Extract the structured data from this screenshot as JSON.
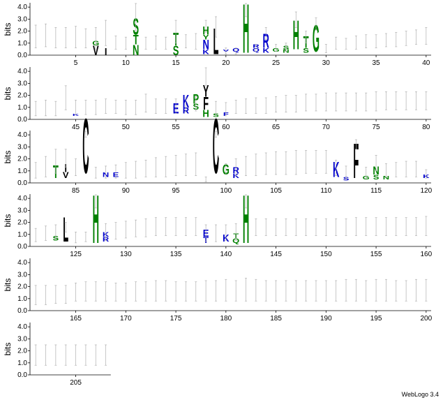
{
  "chart_data": {
    "type": "sequence-logo",
    "ylabel": "bits",
    "ylim": [
      0,
      4.3
    ],
    "yticks": [
      "0.0",
      "1.0",
      "2.0",
      "3.0",
      "4.0"
    ],
    "positions_per_row": 40,
    "total_positions": 208,
    "xtick_every": 5,
    "colors": {
      "hydrophobic": "#000000",
      "polar": "#008000",
      "basic": "#0000cc",
      "acidic": "#cc0000",
      "errorbar": "#b0b0b0"
    },
    "error_bars": [
      [
        1,
        0.6,
        2.5
      ],
      [
        2,
        0.7,
        2.6
      ],
      [
        3,
        0.6,
        2.3
      ],
      [
        4,
        0.6,
        2.3
      ],
      [
        5,
        0.6,
        2.4
      ],
      [
        6,
        0.6,
        2.2
      ],
      [
        7,
        0.5,
        2.3
      ],
      [
        8,
        0.8,
        2.9
      ],
      [
        9,
        0.5,
        1.6
      ],
      [
        10,
        0.5,
        1.5
      ],
      [
        11,
        2.0,
        4.3
      ],
      [
        12,
        0.5,
        1.5
      ],
      [
        13,
        0.5,
        1.6
      ],
      [
        14,
        0.5,
        1.5
      ],
      [
        15,
        1.0,
        2.9
      ],
      [
        16,
        0.6,
        1.7
      ],
      [
        17,
        0.5,
        1.8
      ],
      [
        18,
        1.9,
        2.9
      ],
      [
        19,
        1.5,
        3.2
      ],
      [
        20,
        0.1,
        0.6
      ],
      [
        21,
        0.1,
        0.6
      ],
      [
        22,
        3.2,
        4.3
      ],
      [
        23,
        0.3,
        0.9
      ],
      [
        24,
        1.3,
        2.3
      ],
      [
        25,
        0.3,
        0.9
      ],
      [
        26,
        0.3,
        1.0
      ],
      [
        27,
        2.3,
        3.6
      ],
      [
        28,
        1.0,
        2.0
      ],
      [
        29,
        2.1,
        3.1
      ],
      [
        30,
        0.2,
        0.9
      ],
      [
        31,
        0.5,
        1.5
      ],
      [
        32,
        0.5,
        1.4
      ],
      [
        33,
        0.5,
        1.6
      ],
      [
        34,
        0.6,
        1.7
      ],
      [
        35,
        0.6,
        1.7
      ],
      [
        36,
        0.7,
        1.8
      ],
      [
        37,
        0.7,
        1.9
      ],
      [
        38,
        0.8,
        2.0
      ],
      [
        39,
        0.9,
        2.1
      ],
      [
        40,
        0.9,
        2.3
      ],
      [
        41,
        0.3,
        1.5
      ],
      [
        42,
        0.3,
        1.6
      ],
      [
        43,
        0.3,
        1.5
      ],
      [
        44,
        0.8,
        2.8
      ],
      [
        45,
        0.4,
        1.6
      ],
      [
        46,
        0.4,
        1.6
      ],
      [
        47,
        0.4,
        1.6
      ],
      [
        48,
        0.5,
        1.7
      ],
      [
        49,
        0.5,
        1.6
      ],
      [
        50,
        0.4,
        1.6
      ],
      [
        51,
        0.4,
        1.6
      ],
      [
        52,
        0.6,
        2.1
      ],
      [
        53,
        0.5,
        1.7
      ],
      [
        54,
        0.5,
        1.7
      ],
      [
        55,
        0.5,
        1.7
      ],
      [
        56,
        0.6,
        1.8
      ],
      [
        57,
        0.7,
        1.9
      ],
      [
        58,
        2.8,
        4.3
      ],
      [
        59,
        0.4,
        1.5
      ],
      [
        60,
        0.3,
        1.4
      ],
      [
        61,
        0.5,
        1.6
      ],
      [
        62,
        0.5,
        1.7
      ],
      [
        63,
        0.5,
        1.8
      ],
      [
        64,
        0.5,
        1.8
      ],
      [
        65,
        0.6,
        1.9
      ],
      [
        66,
        0.6,
        2.0
      ],
      [
        67,
        0.6,
        2.0
      ],
      [
        68,
        0.7,
        2.1
      ],
      [
        69,
        0.7,
        2.1
      ],
      [
        70,
        0.7,
        2.2
      ],
      [
        71,
        0.7,
        2.2
      ],
      [
        72,
        0.7,
        2.2
      ],
      [
        73,
        0.7,
        2.2
      ],
      [
        74,
        0.7,
        2.2
      ],
      [
        75,
        0.7,
        2.3
      ],
      [
        76,
        0.8,
        2.3
      ],
      [
        77,
        0.8,
        2.3
      ],
      [
        78,
        0.8,
        2.3
      ],
      [
        79,
        0.8,
        2.3
      ],
      [
        80,
        0.8,
        2.3
      ],
      [
        81,
        0.4,
        1.7
      ],
      [
        82,
        0.5,
        2.2
      ],
      [
        83,
        0.8,
        2.8
      ],
      [
        84,
        1.3,
        2.8
      ],
      [
        85,
        0.6,
        2.0
      ],
      [
        86,
        3.8,
        4.3
      ],
      [
        87,
        0.4,
        1.3
      ],
      [
        88,
        0.4,
        1.4
      ],
      [
        89,
        0.4,
        1.5
      ],
      [
        90,
        0.4,
        1.7
      ],
      [
        91,
        0.4,
        1.8
      ],
      [
        92,
        0.5,
        1.9
      ],
      [
        93,
        0.5,
        2.1
      ],
      [
        94,
        0.5,
        2.2
      ],
      [
        95,
        0.6,
        2.3
      ],
      [
        96,
        0.6,
        2.4
      ],
      [
        97,
        0.6,
        2.5
      ],
      [
        98,
        0.1,
        0.5
      ],
      [
        99,
        3.8,
        4.3
      ],
      [
        100,
        0.7,
        1.6
      ],
      [
        101,
        0.6,
        2.0
      ],
      [
        102,
        0.6,
        2.2
      ],
      [
        103,
        0.6,
        2.4
      ],
      [
        104,
        0.7,
        2.5
      ],
      [
        105,
        0.7,
        2.6
      ],
      [
        106,
        0.7,
        2.6
      ],
      [
        107,
        0.7,
        2.7
      ],
      [
        108,
        0.8,
        2.7
      ],
      [
        109,
        0.8,
        2.7
      ],
      [
        110,
        0.8,
        2.7
      ],
      [
        111,
        0.6,
        1.9
      ],
      [
        112,
        0.3,
        1.4
      ],
      [
        113,
        2.8,
        3.6
      ],
      [
        114,
        0.4,
        1.3
      ],
      [
        115,
        1.0,
        2.3
      ],
      [
        116,
        0.5,
        1.6
      ],
      [
        117,
        0.5,
        1.7
      ],
      [
        118,
        0.5,
        1.8
      ],
      [
        119,
        0.5,
        1.8
      ],
      [
        120,
        0.4,
        1.1
      ],
      [
        121,
        0.4,
        1.5
      ],
      [
        122,
        0.5,
        1.7
      ],
      [
        123,
        0.6,
        1.8
      ],
      [
        124,
        1.2,
        2.0
      ],
      [
        125,
        0.3,
        1.2
      ],
      [
        126,
        0.4,
        1.2
      ],
      [
        127,
        3.2,
        4.3
      ],
      [
        128,
        0.5,
        1.9
      ],
      [
        129,
        0.6,
        2.0
      ],
      [
        130,
        0.7,
        2.1
      ],
      [
        131,
        0.8,
        2.2
      ],
      [
        132,
        0.8,
        2.3
      ],
      [
        133,
        0.9,
        2.4
      ],
      [
        134,
        0.9,
        2.4
      ],
      [
        135,
        0.9,
        2.4
      ],
      [
        136,
        0.9,
        2.4
      ],
      [
        137,
        0.9,
        2.4
      ],
      [
        138,
        0.4,
        1.8
      ],
      [
        139,
        0.4,
        1.8
      ],
      [
        140,
        0.5,
        1.8
      ],
      [
        141,
        0.5,
        1.9
      ],
      [
        142,
        3.2,
        4.3
      ],
      [
        143,
        0.9,
        2.3
      ],
      [
        144,
        0.9,
        2.3
      ],
      [
        145,
        0.9,
        2.3
      ],
      [
        146,
        0.9,
        2.3
      ],
      [
        147,
        0.9,
        2.3
      ],
      [
        148,
        0.9,
        2.3
      ],
      [
        149,
        0.9,
        2.3
      ],
      [
        150,
        0.9,
        2.3
      ],
      [
        151,
        0.9,
        2.3
      ],
      [
        152,
        0.9,
        2.3
      ],
      [
        153,
        0.9,
        2.4
      ],
      [
        154,
        0.9,
        2.4
      ],
      [
        155,
        0.9,
        2.4
      ],
      [
        156,
        0.9,
        2.4
      ],
      [
        157,
        0.9,
        2.4
      ],
      [
        158,
        0.9,
        2.4
      ],
      [
        159,
        0.9,
        2.4
      ],
      [
        160,
        0.9,
        2.5
      ],
      [
        161,
        0.5,
        2.1
      ],
      [
        162,
        0.5,
        2.1
      ],
      [
        163,
        0.6,
        2.1
      ],
      [
        164,
        0.6,
        2.1
      ],
      [
        165,
        0.8,
        2.3
      ],
      [
        166,
        0.8,
        2.4
      ],
      [
        167,
        0.8,
        2.4
      ],
      [
        168,
        0.8,
        2.4
      ],
      [
        169,
        0.8,
        2.3
      ],
      [
        170,
        0.8,
        2.3
      ],
      [
        171,
        0.8,
        2.4
      ],
      [
        172,
        0.8,
        2.4
      ],
      [
        173,
        0.8,
        2.5
      ],
      [
        174,
        0.8,
        2.5
      ],
      [
        175,
        0.8,
        2.4
      ],
      [
        176,
        0.8,
        2.4
      ],
      [
        177,
        0.8,
        2.4
      ],
      [
        178,
        0.8,
        2.5
      ],
      [
        179,
        0.8,
        2.5
      ],
      [
        180,
        0.8,
        2.6
      ],
      [
        181,
        0.8,
        2.5
      ],
      [
        182,
        0.8,
        2.7
      ],
      [
        183,
        0.8,
        2.6
      ],
      [
        184,
        0.8,
        2.5
      ],
      [
        185,
        0.8,
        2.5
      ],
      [
        186,
        0.8,
        2.5
      ],
      [
        187,
        0.8,
        2.5
      ],
      [
        188,
        0.8,
        2.5
      ],
      [
        189,
        0.8,
        2.5
      ],
      [
        190,
        0.8,
        2.5
      ],
      [
        191,
        0.8,
        2.5
      ],
      [
        192,
        0.8,
        2.6
      ],
      [
        193,
        0.8,
        2.6
      ],
      [
        194,
        0.8,
        2.5
      ],
      [
        195,
        0.8,
        2.6
      ],
      [
        196,
        0.8,
        2.6
      ],
      [
        197,
        0.8,
        2.5
      ],
      [
        198,
        0.8,
        2.5
      ],
      [
        199,
        0.8,
        2.6
      ],
      [
        200,
        0.8,
        2.6
      ],
      [
        201,
        0.8,
        2.5
      ],
      [
        202,
        0.8,
        2.5
      ],
      [
        203,
        0.8,
        2.5
      ],
      [
        204,
        0.8,
        2.5
      ],
      [
        205,
        0.8,
        2.5
      ],
      [
        206,
        0.8,
        2.5
      ],
      [
        207,
        0.8,
        2.5
      ],
      [
        208,
        0.8,
        2.5
      ]
    ],
    "letters": [
      [
        7,
        "V",
        0,
        0.8,
        "#000000"
      ],
      [
        7,
        "G",
        0.8,
        1.2,
        "#008000"
      ],
      [
        8,
        "I",
        0,
        0.6,
        "#000000"
      ],
      [
        11,
        "N",
        0,
        0.9,
        "#008000"
      ],
      [
        11,
        "T",
        0.9,
        1.7,
        "#008000"
      ],
      [
        11,
        "S",
        1.7,
        3.1,
        "#008000"
      ],
      [
        15,
        "S",
        0,
        0.8,
        "#008000"
      ],
      [
        15,
        "T",
        0.8,
        1.9,
        "#008000"
      ],
      [
        18,
        "K",
        0.1,
        0.5,
        "#0000cc"
      ],
      [
        18,
        "N",
        0.5,
        1.3,
        "#0000cc"
      ],
      [
        18,
        "Y",
        1.3,
        1.7,
        "#008000"
      ],
      [
        18,
        "H",
        1.7,
        2.4,
        "#008000"
      ],
      [
        19,
        "L",
        0.1,
        2.3,
        "#000000"
      ],
      [
        20,
        "V",
        0.3,
        0.5,
        "#0000cc"
      ],
      [
        21,
        "Q",
        0.3,
        0.6,
        "#0000cc"
      ],
      [
        22,
        "H",
        0.2,
        4.4,
        "#008000"
      ],
      [
        23,
        "Q",
        0.3,
        0.6,
        "#0000cc"
      ],
      [
        23,
        "R",
        0.6,
        0.9,
        "#0000cc"
      ],
      [
        24,
        "K",
        0.2,
        0.6,
        "#0000cc"
      ],
      [
        24,
        "R",
        0.6,
        1.8,
        "#0000cc"
      ],
      [
        25,
        "G",
        0.3,
        0.6,
        "#008000"
      ],
      [
        26,
        "N",
        0.2,
        0.5,
        "#008000"
      ],
      [
        26,
        "S",
        0.5,
        0.8,
        "#008000"
      ],
      [
        27,
        "H",
        0.5,
        3.0,
        "#008000"
      ],
      [
        28,
        "S",
        0.2,
        0.6,
        "#008000"
      ],
      [
        28,
        "T",
        0.6,
        1.6,
        "#008000"
      ],
      [
        29,
        "G",
        0.3,
        2.6,
        "#008000"
      ],
      [
        45,
        "K",
        0.3,
        0.5,
        "#0000cc"
      ],
      [
        55,
        "E",
        0.5,
        1.4,
        "#0000cc"
      ],
      [
        56,
        "R",
        0.5,
        1.0,
        "#0000cc"
      ],
      [
        56,
        "K",
        1.0,
        2.1,
        "#0000cc"
      ],
      [
        57,
        "S",
        0.8,
        1.3,
        "#008000"
      ],
      [
        57,
        "P",
        1.3,
        2.1,
        "#008000"
      ],
      [
        58,
        "H",
        0.2,
        0.8,
        "#008000"
      ],
      [
        58,
        "F",
        0.8,
        1.9,
        "#000000"
      ],
      [
        58,
        "Y",
        1.9,
        2.9,
        "#000000"
      ],
      [
        59,
        "S",
        0.2,
        0.5,
        "#008000"
      ],
      [
        60,
        "F",
        0.3,
        0.6,
        "#0000cc"
      ],
      [
        83,
        "T",
        0.4,
        1.5,
        "#008000"
      ],
      [
        84,
        "V",
        0.4,
        0.9,
        "#000000"
      ],
      [
        84,
        "I",
        0.9,
        1.6,
        "#000000"
      ],
      [
        86,
        "C",
        0.8,
        5.5,
        "#000000"
      ],
      [
        88,
        "N",
        0.5,
        0.9,
        "#0000cc"
      ],
      [
        89,
        "E",
        0.5,
        0.9,
        "#0000cc"
      ],
      [
        99,
        "C",
        0.8,
        5.5,
        "#000000"
      ],
      [
        100,
        "G",
        0.7,
        1.6,
        "#008000"
      ],
      [
        101,
        "K",
        0.4,
        0.8,
        "#0000cc"
      ],
      [
        101,
        "R",
        0.8,
        1.3,
        "#0000cc"
      ],
      [
        111,
        "K",
        0.5,
        1.8,
        "#0000cc"
      ],
      [
        112,
        "S",
        0.2,
        0.5,
        "#0000cc"
      ],
      [
        113,
        "F",
        0.4,
        3.4,
        "#000000"
      ],
      [
        114,
        "G",
        0.3,
        0.6,
        "#008000"
      ],
      [
        115,
        "S",
        0.3,
        0.7,
        "#008000"
      ],
      [
        115,
        "N",
        0.7,
        1.4,
        "#008000"
      ],
      [
        116,
        "N",
        0.3,
        0.6,
        "#008000"
      ],
      [
        120,
        "K",
        0.4,
        0.7,
        "#0000cc"
      ],
      [
        123,
        "S",
        0.5,
        0.9,
        "#008000"
      ],
      [
        124,
        "L",
        0.4,
        2.5,
        "#000000"
      ],
      [
        127,
        "H",
        0.3,
        4.4,
        "#008000"
      ],
      [
        128,
        "R",
        0.4,
        0.8,
        "#0000cc"
      ],
      [
        128,
        "K",
        0.8,
        1.2,
        "#0000cc"
      ],
      [
        138,
        "T",
        0.3,
        0.8,
        "#0000cc"
      ],
      [
        138,
        "E",
        0.8,
        1.4,
        "#0000cc"
      ],
      [
        140,
        "K",
        0.4,
        1.0,
        "#0000cc"
      ],
      [
        141,
        "Q",
        0.3,
        0.7,
        "#008000"
      ],
      [
        141,
        "T",
        0.7,
        1.1,
        "#008000"
      ],
      [
        142,
        "H",
        0.3,
        4.4,
        "#008000"
      ]
    ]
  },
  "credit": "WebLogo 3.4"
}
